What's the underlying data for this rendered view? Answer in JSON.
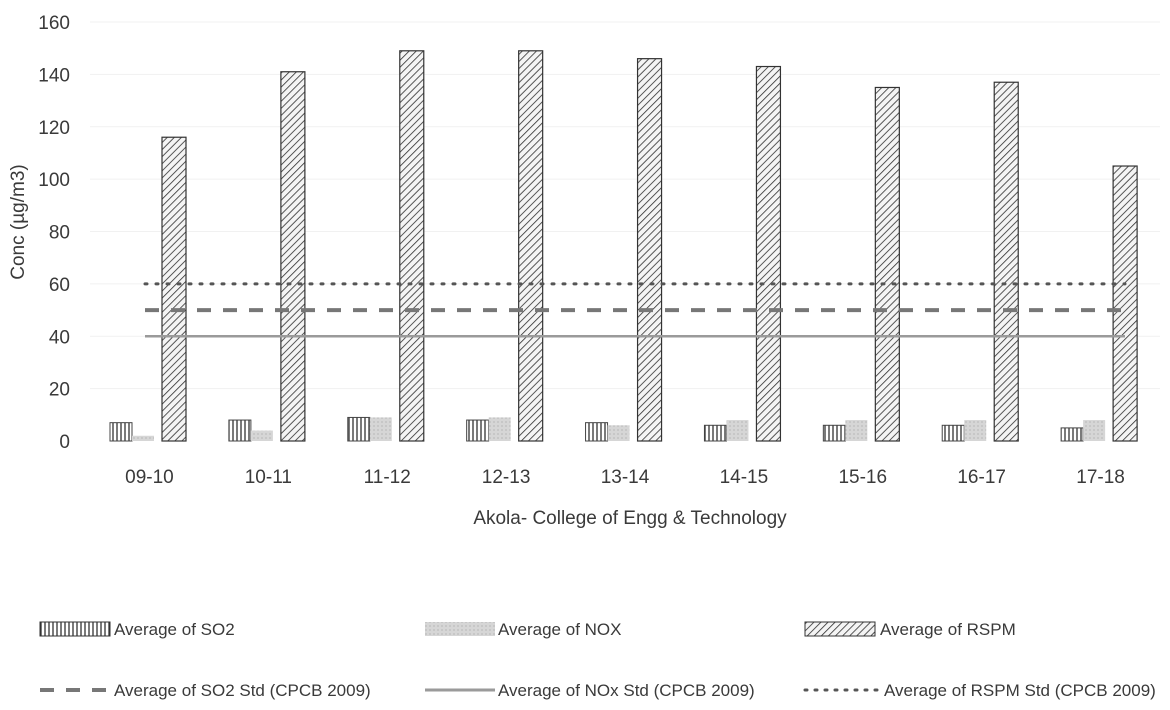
{
  "chart_data": {
    "type": "bar",
    "title": "",
    "xlabel": "Akola- College of Engg & Technology",
    "ylabel": "Conc (µg/m3)",
    "ylim": [
      0,
      160
    ],
    "yticks": [
      0,
      20,
      40,
      60,
      80,
      100,
      120,
      140,
      160
    ],
    "categories": [
      "09-10",
      "10-11",
      "11-12",
      "12-13",
      "13-14",
      "14-15",
      "15-16",
      "16-17",
      "17-18"
    ],
    "series": [
      {
        "name": "Average of SO2",
        "kind": "bar",
        "values": [
          7,
          8,
          9,
          8,
          7,
          6,
          6,
          6,
          5
        ]
      },
      {
        "name": "Average of NOX",
        "kind": "bar",
        "values": [
          2,
          4,
          9,
          9,
          6,
          8,
          8,
          8,
          8
        ]
      },
      {
        "name": "Average of RSPM",
        "kind": "bar",
        "values": [
          116,
          141,
          149,
          149,
          146,
          143,
          135,
          137,
          105
        ]
      },
      {
        "name": "Average of SO2 Std (CPCB 2009)",
        "kind": "line",
        "values": [
          50,
          50,
          50,
          50,
          50,
          50,
          50,
          50,
          50
        ]
      },
      {
        "name": "Average of NOx Std (CPCB 2009)",
        "kind": "line",
        "values": [
          40,
          40,
          40,
          40,
          40,
          40,
          40,
          40,
          40
        ]
      },
      {
        "name": "Average of RSPM Std (CPCB 2009)",
        "kind": "line",
        "values": [
          60,
          60,
          60,
          60,
          60,
          60,
          60,
          60,
          60
        ]
      }
    ],
    "grid": true,
    "legend": "bottom",
    "colors": {
      "so2": "#444444",
      "nox": "#c9c9c9",
      "rspm": "#333333",
      "so2_std": "#777777",
      "nox_std": "#9a9a9a",
      "rspm_std": "#555555"
    }
  }
}
